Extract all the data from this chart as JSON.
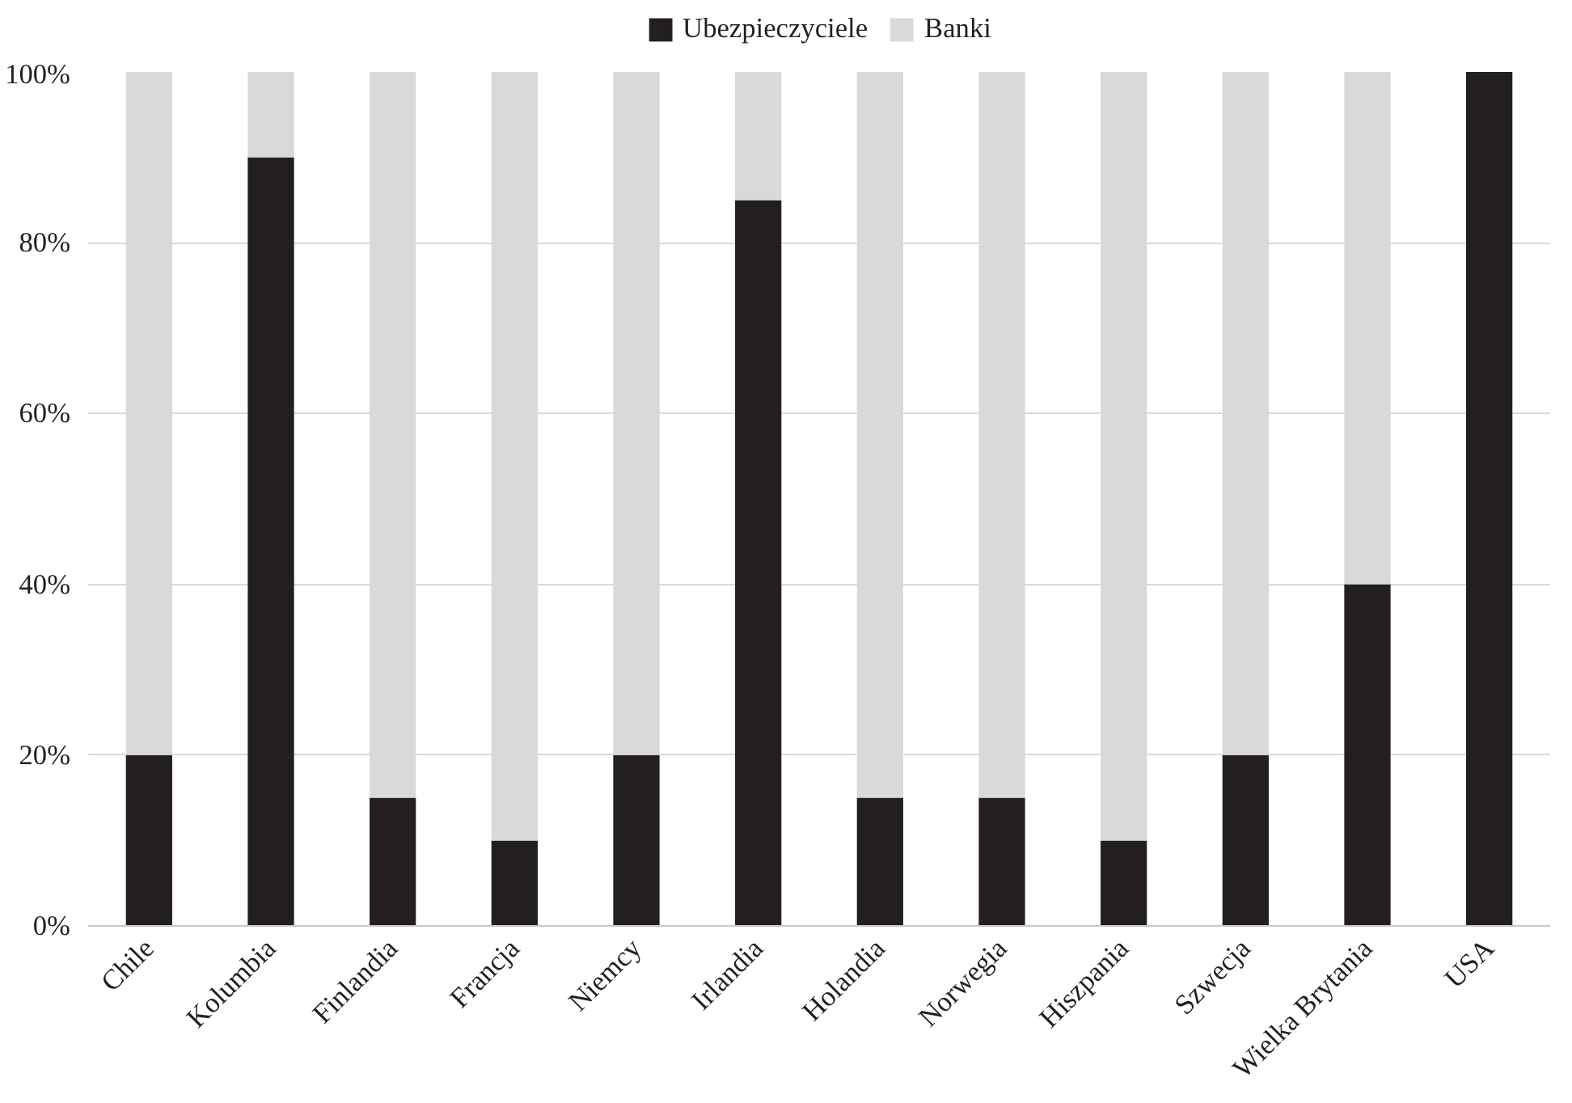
{
  "chart_data": {
    "type": "bar",
    "stacked": true,
    "categories": [
      "Chile",
      "Kolumbia",
      "Finlandia",
      "Francja",
      "Niemcy",
      "Irlandia",
      "Holandia",
      "Norwegia",
      "Hiszpania",
      "Szwecja",
      "Wielka Brytania",
      "USA"
    ],
    "series": [
      {
        "name": "Ubezpieczyciele",
        "color": "#231f20",
        "values": [
          20,
          90,
          15,
          10,
          20,
          85,
          15,
          15,
          10,
          20,
          40,
          100
        ]
      },
      {
        "name": "Banki",
        "color": "#d9d9d9",
        "values": [
          80,
          10,
          85,
          90,
          80,
          15,
          85,
          85,
          90,
          80,
          60,
          0
        ]
      }
    ],
    "ylim": [
      0,
      100
    ],
    "yticks": [
      {
        "value": 0,
        "label": "0%"
      },
      {
        "value": 20,
        "label": "20%"
      },
      {
        "value": 40,
        "label": "40%"
      },
      {
        "value": 60,
        "label": "60%"
      },
      {
        "value": 80,
        "label": "80%"
      },
      {
        "value": 100,
        "label": "100%"
      }
    ],
    "grid": "y",
    "legend": "top"
  }
}
